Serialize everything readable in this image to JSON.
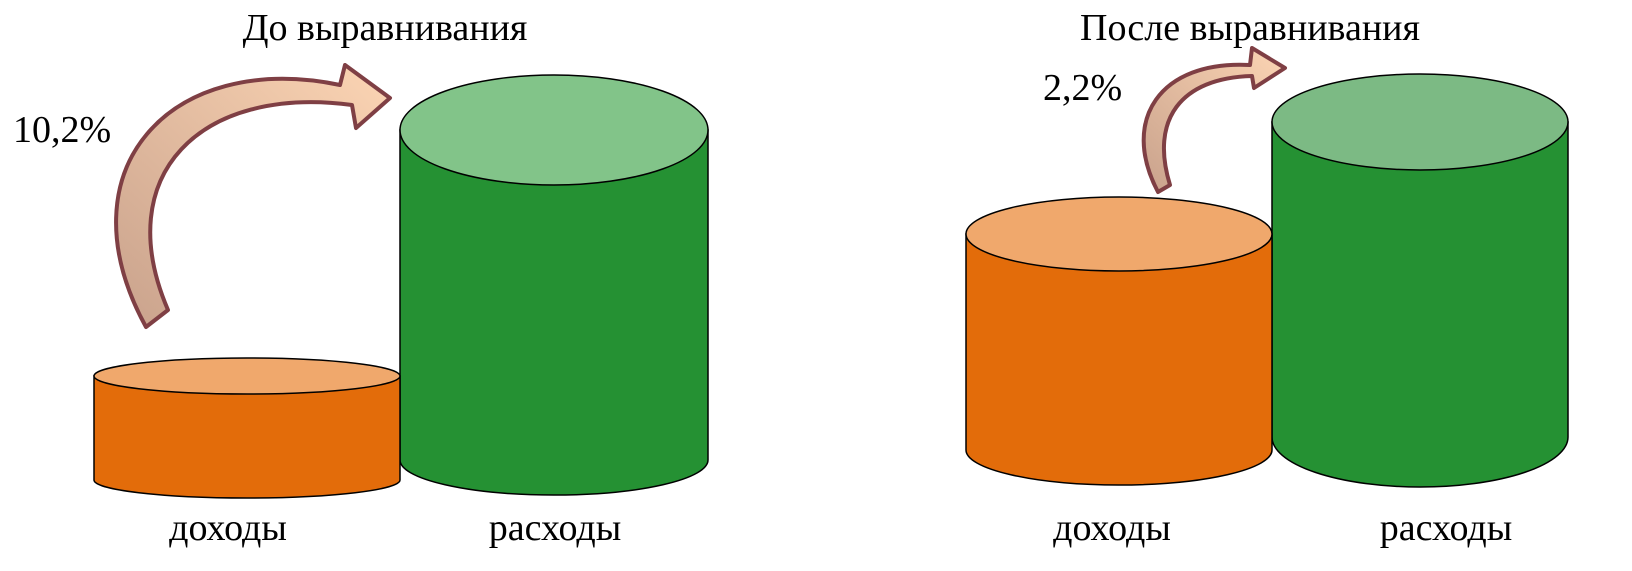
{
  "colors": {
    "income_side": "#e36c0a",
    "income_top": "#f0a86c",
    "expense_side": "#259133",
    "expense_top_left": "#82c489",
    "expense_top_right": "#7cba84",
    "arrow_fill": "#c9a28c",
    "arrow_fill_light": "#fcd5b4",
    "arrow_stroke": "#7f3f44",
    "outline": "#000000"
  },
  "panels": [
    {
      "title": "До выравнивания",
      "gap_label": "10,2%",
      "income_label": "доходы",
      "expense_label": "расходы"
    },
    {
      "title": "После выравнивания",
      "gap_label": "2,2%",
      "income_label": "доходы",
      "expense_label": "расходы"
    }
  ]
}
